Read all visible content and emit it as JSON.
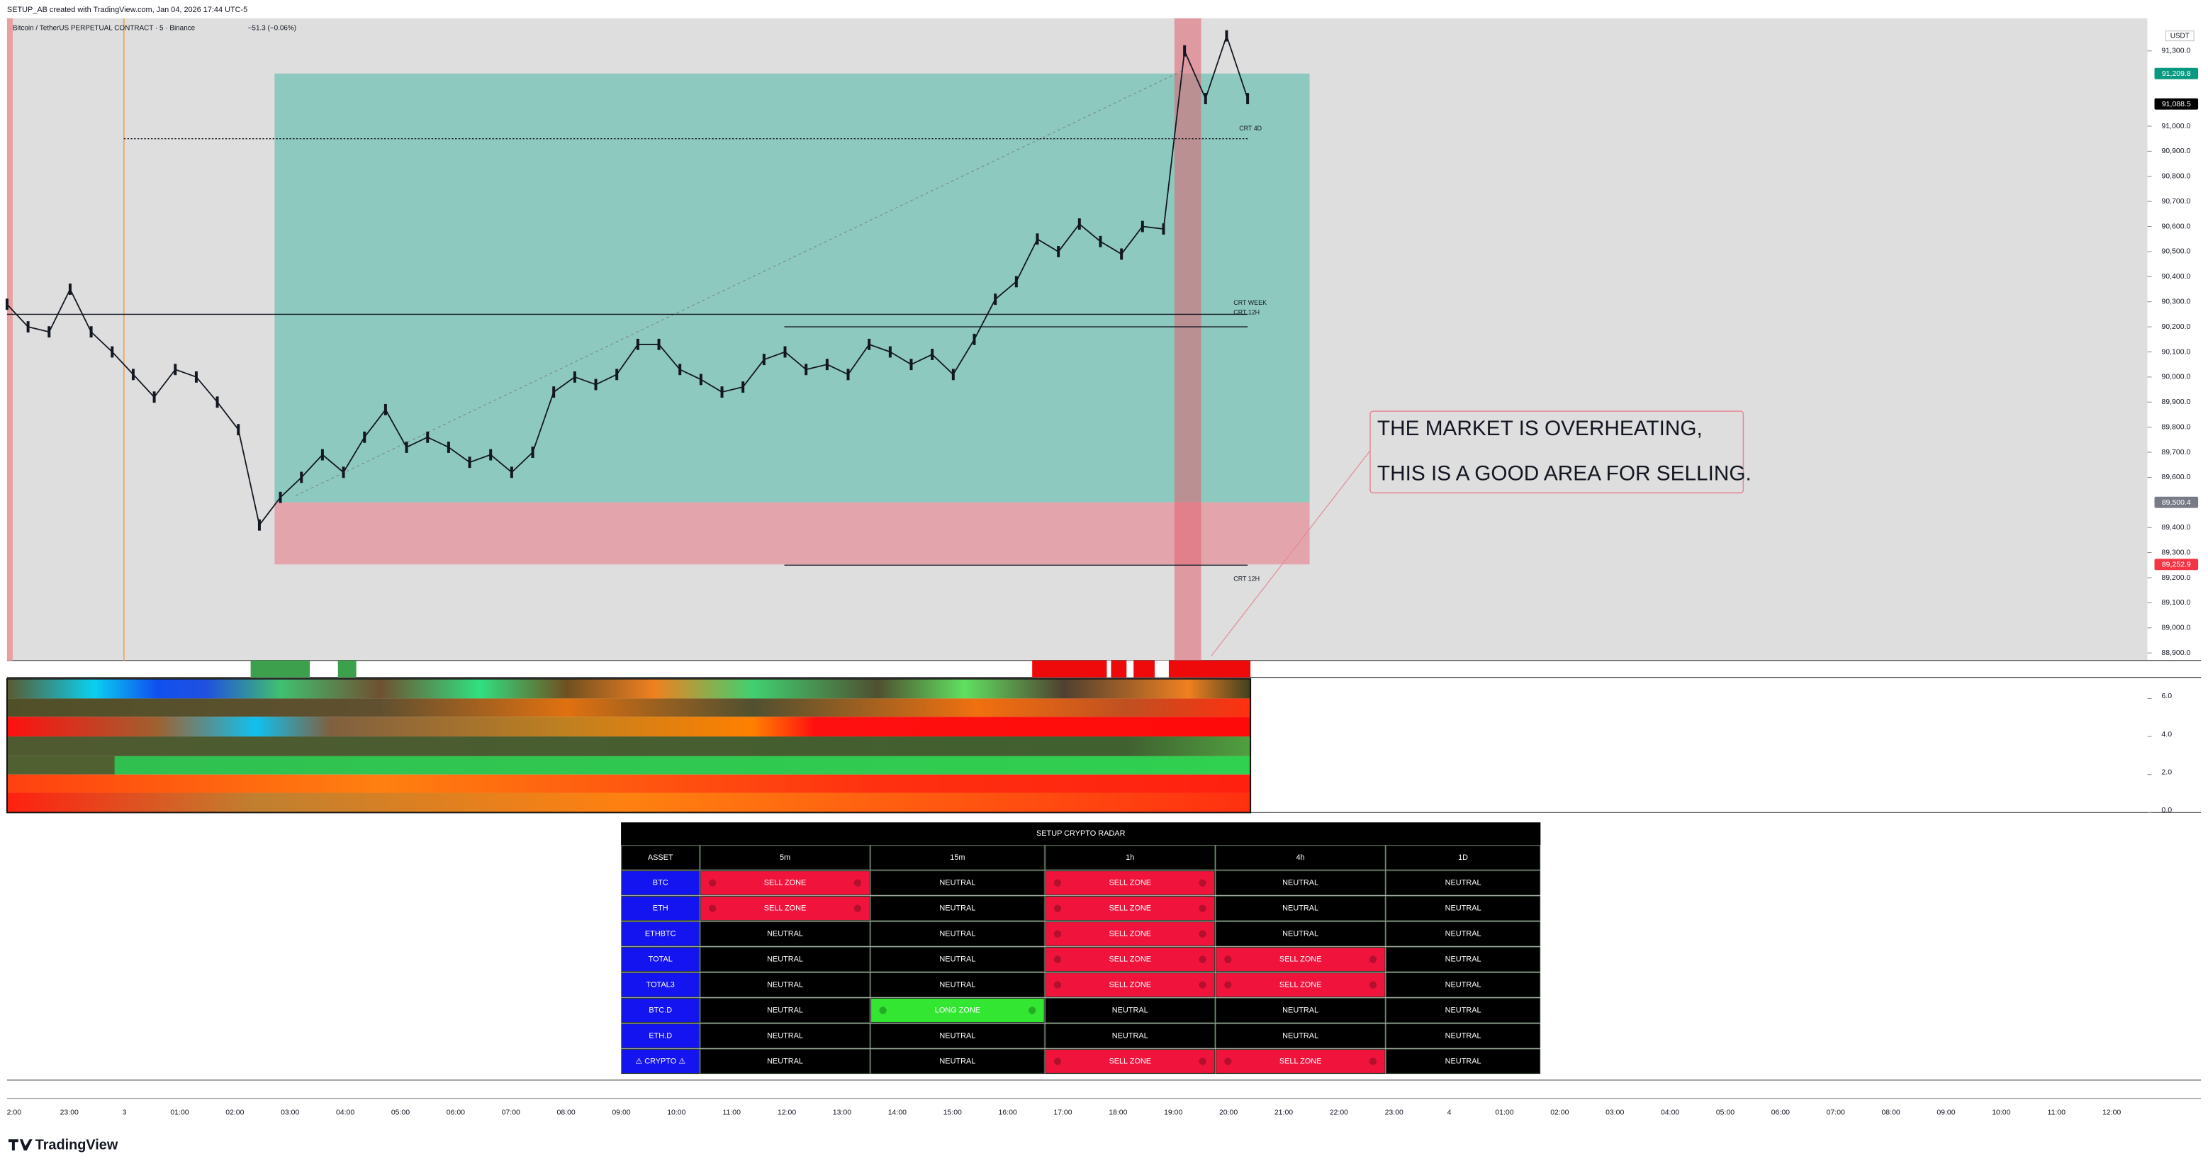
{
  "header": {
    "credit": "SETUP_AB created with TradingView.com, Jan 04, 2026 17:44 UTC-5"
  },
  "chart": {
    "symbol": "Bitcoin / TetherUS PERPETUAL CONTRACT · 5 · Binance",
    "change": "−51.3 (−0.06%)",
    "currency": "USDT",
    "price_axis": {
      "ylim": [
        88870,
        91430
      ],
      "ticks": [
        {
          "value": 91300,
          "label": "91,300.0"
        },
        {
          "value": 91000,
          "label": "91,000.0"
        },
        {
          "value": 90900,
          "label": "90,900.0"
        },
        {
          "value": 90800,
          "label": "90,800.0"
        },
        {
          "value": 90700,
          "label": "90,700.0"
        },
        {
          "value": 90600,
          "label": "90,600.0"
        },
        {
          "value": 90500,
          "label": "90,500.0"
        },
        {
          "value": 90400,
          "label": "90,400.0"
        },
        {
          "value": 90300,
          "label": "90,300.0"
        },
        {
          "value": 90200,
          "label": "90,200.0"
        },
        {
          "value": 90100,
          "label": "90,100.0"
        },
        {
          "value": 90000,
          "label": "90,000.0"
        },
        {
          "value": 89900,
          "label": "89,900.0"
        },
        {
          "value": 89800,
          "label": "89,800.0"
        },
        {
          "value": 89700,
          "label": "89,700.0"
        },
        {
          "value": 89600,
          "label": "89,600.0"
        },
        {
          "value": 89400,
          "label": "89,400.0"
        },
        {
          "value": 89300,
          "label": "89,300.0"
        },
        {
          "value": 89200,
          "label": "89,200.0"
        },
        {
          "value": 89100,
          "label": "89,100.0"
        },
        {
          "value": 89000,
          "label": "89,000.0"
        },
        {
          "value": 88900,
          "label": "88,900.0"
        }
      ]
    },
    "price_series": {
      "color": "#131722",
      "values": [
        90290,
        90200,
        90180,
        90350,
        90180,
        90100,
        90010,
        89920,
        90030,
        90000,
        89900,
        89790,
        89410,
        89520,
        89600,
        89690,
        89620,
        89760,
        89870,
        89720,
        89760,
        89720,
        89660,
        89690,
        89620,
        89700,
        89940,
        90000,
        89970,
        90010,
        90130,
        90130,
        90030,
        89990,
        89940,
        89960,
        90070,
        90100,
        90030,
        90050,
        90010,
        90130,
        90100,
        90050,
        90090,
        90010,
        90150,
        90310,
        90380,
        90550,
        90500,
        90610,
        90540,
        90490,
        90600,
        90590,
        91300,
        91110,
        91360,
        91110
      ]
    },
    "price_labels": [
      {
        "value": 91209.8,
        "label": "91,209.8",
        "color": "#089981"
      },
      {
        "value": 91088.5,
        "label": "91,088.5",
        "color": "#000000"
      },
      {
        "value": 89500.4,
        "label": "89,500.4",
        "color": "#787b86"
      },
      {
        "value": 89252.9,
        "label": "89,252.9",
        "color": "#f23645"
      }
    ],
    "zones": [
      {
        "top": 91209.8,
        "bottom": 89500.4,
        "color": "#8ec9bf"
      },
      {
        "top": 89500.4,
        "bottom": 89252.9,
        "color": "#e3a4ab"
      }
    ],
    "levels": [
      {
        "label": "CRT 4D",
        "value": 90950
      },
      {
        "label": "CRT WEEK",
        "value": 90250
      },
      {
        "label": "CRT 12H",
        "value": 90200
      },
      {
        "label": "CRT 12H",
        "value": 89250
      }
    ],
    "annotation": {
      "lines": [
        "THE MARKET IS OVERHEATING,",
        "THIS IS A GOOD AREA FOR SELLING."
      ]
    },
    "indicator_axis": {
      "ylim": [
        0,
        7
      ],
      "ticks": [
        {
          "value": 6,
          "label": "6.0"
        },
        {
          "value": 4,
          "label": "4.0"
        },
        {
          "value": 2,
          "label": "2.0"
        },
        {
          "value": 0,
          "label": "0.0"
        }
      ]
    },
    "time_axis": {
      "labels": [
        "2:00",
        "23:00",
        "3",
        "01:00",
        "02:00",
        "03:00",
        "04:00",
        "05:00",
        "06:00",
        "07:00",
        "08:00",
        "09:00",
        "10:00",
        "11:00",
        "12:00",
        "13:00",
        "14:00",
        "15:00",
        "16:00",
        "17:00",
        "18:00",
        "19:00",
        "20:00",
        "21:00",
        "22:00",
        "23:00",
        "4",
        "01:00",
        "02:00",
        "03:00",
        "04:00",
        "05:00",
        "06:00",
        "07:00",
        "08:00",
        "09:00",
        "10:00",
        "11:00",
        "12:00"
      ]
    }
  },
  "table": {
    "title": "SETUP CRYPTO RADAR",
    "asset_color": "#1414f0",
    "columns": [
      "ASSET",
      "5m",
      "15m",
      "1h",
      "4h",
      "1D"
    ],
    "rows": [
      {
        "asset": "BTC",
        "cells": [
          {
            "text": "SELL ZONE",
            "color": "#f0143c"
          },
          {
            "text": "NEUTRAL",
            "color": "#000000"
          },
          {
            "text": "SELL ZONE",
            "color": "#f0143c"
          },
          {
            "text": "NEUTRAL",
            "color": "#000000"
          },
          {
            "text": "NEUTRAL",
            "color": "#000000"
          }
        ]
      },
      {
        "asset": "ETH",
        "cells": [
          {
            "text": "SELL ZONE",
            "color": "#f0143c"
          },
          {
            "text": "NEUTRAL",
            "color": "#000000"
          },
          {
            "text": "SELL ZONE",
            "color": "#f0143c"
          },
          {
            "text": "NEUTRAL",
            "color": "#000000"
          },
          {
            "text": "NEUTRAL",
            "color": "#000000"
          }
        ]
      },
      {
        "asset": "ETHBTC",
        "cells": [
          {
            "text": "NEUTRAL",
            "color": "#000000"
          },
          {
            "text": "NEUTRAL",
            "color": "#000000"
          },
          {
            "text": "SELL ZONE",
            "color": "#f0143c"
          },
          {
            "text": "NEUTRAL",
            "color": "#000000"
          },
          {
            "text": "NEUTRAL",
            "color": "#000000"
          }
        ]
      },
      {
        "asset": "TOTAL",
        "cells": [
          {
            "text": "NEUTRAL",
            "color": "#000000"
          },
          {
            "text": "NEUTRAL",
            "color": "#000000"
          },
          {
            "text": "SELL ZONE",
            "color": "#f0143c"
          },
          {
            "text": "SELL ZONE",
            "color": "#f0143c"
          },
          {
            "text": "NEUTRAL",
            "color": "#000000"
          }
        ]
      },
      {
        "asset": "TOTAL3",
        "cells": [
          {
            "text": "NEUTRAL",
            "color": "#000000"
          },
          {
            "text": "NEUTRAL",
            "color": "#000000"
          },
          {
            "text": "SELL ZONE",
            "color": "#f0143c"
          },
          {
            "text": "SELL ZONE",
            "color": "#f0143c"
          },
          {
            "text": "NEUTRAL",
            "color": "#000000"
          }
        ]
      },
      {
        "asset": "BTC.D",
        "cells": [
          {
            "text": "NEUTRAL",
            "color": "#000000"
          },
          {
            "text": "LONG ZONE",
            "color": "#32e632"
          },
          {
            "text": "NEUTRAL",
            "color": "#000000"
          },
          {
            "text": "NEUTRAL",
            "color": "#000000"
          },
          {
            "text": "NEUTRAL",
            "color": "#000000"
          }
        ]
      },
      {
        "asset": "ETH.D",
        "cells": [
          {
            "text": "NEUTRAL",
            "color": "#000000"
          },
          {
            "text": "NEUTRAL",
            "color": "#000000"
          },
          {
            "text": "NEUTRAL",
            "color": "#000000"
          },
          {
            "text": "NEUTRAL",
            "color": "#000000"
          },
          {
            "text": "NEUTRAL",
            "color": "#000000"
          }
        ]
      },
      {
        "asset": "⚠ CRYPTO ⚠",
        "cells": [
          {
            "text": "NEUTRAL",
            "color": "#000000"
          },
          {
            "text": "NEUTRAL",
            "color": "#000000"
          },
          {
            "text": "SELL ZONE",
            "color": "#f0143c"
          },
          {
            "text": "SELL ZONE",
            "color": "#f0143c"
          },
          {
            "text": "NEUTRAL",
            "color": "#000000"
          }
        ]
      }
    ]
  }
}
